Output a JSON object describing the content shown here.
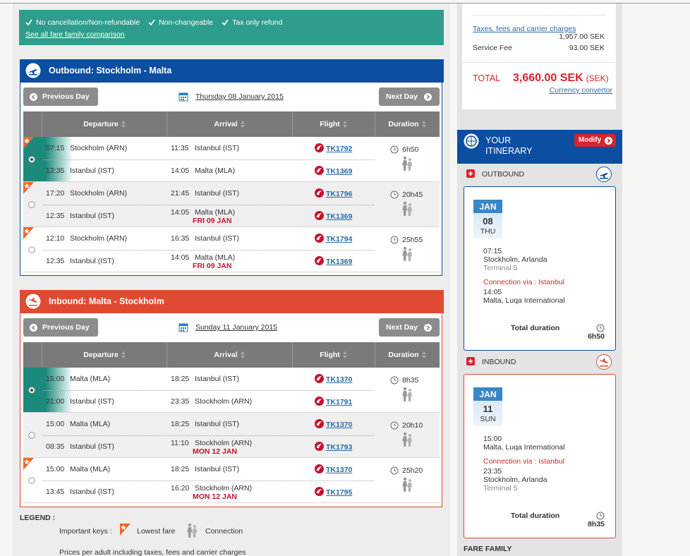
{
  "fare_banner": {
    "features": [
      "No cancellation/Non-refundable",
      "Non-changeable",
      "Tax only refund"
    ],
    "link": "See all fare family comparison"
  },
  "outbound": {
    "title": "Outbound: Stockholm - Malta",
    "prev": "Previous Day",
    "date": "Thursday 08 January 2015",
    "next": "Next Day",
    "columns": [
      "Departure",
      "Arrival",
      "Flight",
      "Duration"
    ],
    "options": [
      {
        "lowest_fare": true,
        "selected": true,
        "duration": "6h50",
        "legs": [
          {
            "dep_time": "07:15",
            "dep_place": "Stockholm (ARN)",
            "arr_time": "11:35",
            "arr_place": "Istanbul (IST)",
            "flight": "TK1792"
          },
          {
            "dep_time": "12:35",
            "dep_place": "Istanbul (IST)",
            "arr_time": "14:05",
            "arr_place": "Malta (MLA)",
            "flight": "TK1369"
          }
        ]
      },
      {
        "lowest_fare": true,
        "selected": false,
        "duration": "20h45",
        "legs": [
          {
            "dep_time": "17:20",
            "dep_place": "Stockholm (ARN)",
            "arr_time": "21:45",
            "arr_place": "Istanbul (IST)",
            "flight": "TK1796"
          },
          {
            "dep_time": "12:35",
            "dep_place": "Istanbul (IST)",
            "arr_time": "14:05",
            "arr_place": "Malta (MLA)",
            "arr_note": "FRI 09 JAN",
            "flight": "TK1369"
          }
        ]
      },
      {
        "lowest_fare": true,
        "selected": false,
        "duration": "25h55",
        "legs": [
          {
            "dep_time": "12:10",
            "dep_place": "Stockholm (ARN)",
            "arr_time": "16:35",
            "arr_place": "Istanbul (IST)",
            "flight": "TK1794"
          },
          {
            "dep_time": "12:35",
            "dep_place": "Istanbul (IST)",
            "arr_time": "14:05",
            "arr_place": "Malta (MLA)",
            "arr_note": "FRI 09 JAN",
            "flight": "TK1369"
          }
        ]
      }
    ]
  },
  "inbound": {
    "title": "Inbound: Malta - Stockholm",
    "prev": "Previous Day",
    "date": "Sunday 11 January 2015",
    "next": "Next Day",
    "columns": [
      "Departure",
      "Arrival",
      "Flight",
      "Duration"
    ],
    "options": [
      {
        "lowest_fare": false,
        "selected": true,
        "duration": "8h35",
        "legs": [
          {
            "dep_time": "15:00",
            "dep_place": "Malta (MLA)",
            "arr_time": "18:25",
            "arr_place": "Istanbul (IST)",
            "flight": "TK1370"
          },
          {
            "dep_time": "21:00",
            "dep_place": "Istanbul (IST)",
            "arr_time": "23:35",
            "arr_place": "Stockholm (ARN)",
            "flight": "TK1791"
          }
        ]
      },
      {
        "lowest_fare": false,
        "selected": false,
        "duration": "20h10",
        "legs": [
          {
            "dep_time": "15:00",
            "dep_place": "Malta (MLA)",
            "arr_time": "18:25",
            "arr_place": "Istanbul (IST)",
            "flight": "TK1370"
          },
          {
            "dep_time": "08:35",
            "dep_place": "Istanbul (IST)",
            "arr_time": "11:10",
            "arr_place": "Stockholm (ARN)",
            "arr_note": "MON 12 JAN",
            "flight": "TK1793"
          }
        ]
      },
      {
        "lowest_fare": true,
        "selected": false,
        "duration": "25h20",
        "legs": [
          {
            "dep_time": "15:00",
            "dep_place": "Malta (MLA)",
            "arr_time": "18:25",
            "arr_place": "Istanbul (IST)",
            "flight": "TK1370"
          },
          {
            "dep_time": "13:45",
            "dep_place": "Istanbul (IST)",
            "arr_time": "16:20",
            "arr_place": "Stockholm (ARN)",
            "arr_note": "MON 12 JAN",
            "flight": "TK1795"
          }
        ]
      }
    ]
  },
  "legend": {
    "title": "LEGEND :",
    "keys_label": "Important keys :",
    "lowest_fare": "Lowest fare",
    "connection": "Connection",
    "note": "Prices per adult including taxes, fees and carrier charges"
  },
  "summary": {
    "taxes_label": "Taxes, fees and carrier charges",
    "taxes_value": "1,957.00 SEK",
    "service_label": "Service Fee",
    "service_value": "93.00 SEK",
    "total_label": "TOTAL",
    "total_value": "3,660.00 SEK",
    "total_currency": "(SEK)",
    "currency_link": "Currency convertor"
  },
  "itinerary": {
    "title": "YOUR ITINERARY",
    "modify": "Modify",
    "outbound": {
      "label": "OUTBOUND",
      "month": "JAN",
      "day": "08",
      "weekday": "THU",
      "departure": {
        "time": "07:15",
        "place": "Stockholm, Arlanda",
        "terminal": "Terminal 5"
      },
      "connection": "Connection via : Istanbul",
      "arrival": {
        "time": "14:05",
        "place": "Malta, Luqa International"
      },
      "total_label": "Total duration",
      "total_duration": "6h50"
    },
    "inbound": {
      "label": "INBOUND",
      "month": "JAN",
      "day": "11",
      "weekday": "SUN",
      "departure": {
        "time": "15:00",
        "place": "Malta, Luqa International"
      },
      "connection": "Connection via : Istanbul",
      "arrival": {
        "time": "23:35",
        "place": "Stockholm, Arlanda",
        "terminal": "Terminal 5"
      },
      "total_label": "Total duration",
      "total_duration": "8h35"
    },
    "fare_family": "FARE FAMILY"
  }
}
